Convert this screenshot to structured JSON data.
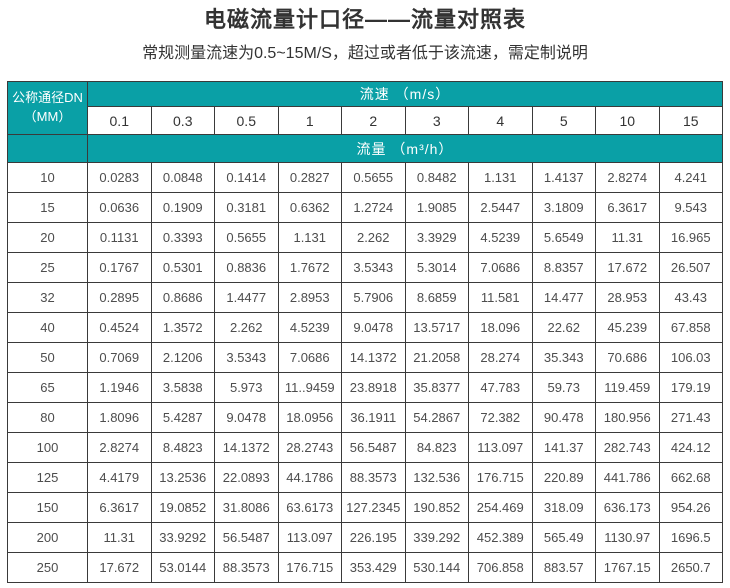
{
  "page": {
    "title": "电磁流量计口径——流量对照表",
    "subtitle": "常规测量流速为0.5~15M/S，超过或者低于该流速，需定制说明"
  },
  "colors": {
    "header_teal": "#0aa0a6",
    "header_text": "#ffffff",
    "border": "#3a3a3a",
    "cell_text": "#4d4d4d",
    "title_text": "#333333",
    "page_bg": "#ffffff"
  },
  "table": {
    "corner_header": {
      "line1": "公称通径DN",
      "line2": "（MM）"
    },
    "velocity_group_header": "流速 （m/s）",
    "flow_group_header": "流量 （m³/h）",
    "velocity_columns": [
      "0.1",
      "0.3",
      "0.5",
      "1",
      "2",
      "3",
      "4",
      "5",
      "10",
      "15"
    ],
    "rows": [
      {
        "dn": "10",
        "values": [
          "0.0283",
          "0.0848",
          "0.1414",
          "0.2827",
          "0.5655",
          "0.8482",
          "1.131",
          "1.4137",
          "2.8274",
          "4.241"
        ]
      },
      {
        "dn": "15",
        "values": [
          "0.0636",
          "0.1909",
          "0.3181",
          "0.6362",
          "1.2724",
          "1.9085",
          "2.5447",
          "3.1809",
          "6.3617",
          "9.543"
        ]
      },
      {
        "dn": "20",
        "values": [
          "0.1131",
          "0.3393",
          "0.5655",
          "1.131",
          "2.262",
          "3.3929",
          "4.5239",
          "5.6549",
          "11.31",
          "16.965"
        ]
      },
      {
        "dn": "25",
        "values": [
          "0.1767",
          "0.5301",
          "0.8836",
          "1.7672",
          "3.5343",
          "5.3014",
          "7.0686",
          "8.8357",
          "17.672",
          "26.507"
        ]
      },
      {
        "dn": "32",
        "values": [
          "0.2895",
          "0.8686",
          "1.4477",
          "2.8953",
          "5.7906",
          "8.6859",
          "11.581",
          "14.477",
          "28.953",
          "43.43"
        ]
      },
      {
        "dn": "40",
        "values": [
          "0.4524",
          "1.3572",
          "2.262",
          "4.5239",
          "9.0478",
          "13.5717",
          "18.096",
          "22.62",
          "45.239",
          "67.858"
        ]
      },
      {
        "dn": "50",
        "values": [
          "0.7069",
          "2.1206",
          "3.5343",
          "7.0686",
          "14.1372",
          "21.2058",
          "28.274",
          "35.343",
          "70.686",
          "106.03"
        ]
      },
      {
        "dn": "65",
        "values": [
          "1.1946",
          "3.5838",
          "5.973",
          "11..9459",
          "23.8918",
          "35.8377",
          "47.783",
          "59.73",
          "119.459",
          "179.19"
        ]
      },
      {
        "dn": "80",
        "values": [
          "1.8096",
          "5.4287",
          "9.0478",
          "18.0956",
          "36.1911",
          "54.2867",
          "72.382",
          "90.478",
          "180.956",
          "271.43"
        ]
      },
      {
        "dn": "100",
        "values": [
          "2.8274",
          "8.4823",
          "14.1372",
          "28.2743",
          "56.5487",
          "84.823",
          "113.097",
          "141.37",
          "282.743",
          "424.12"
        ]
      },
      {
        "dn": "125",
        "values": [
          "4.4179",
          "13.2536",
          "22.0893",
          "44.1786",
          "88.3573",
          "132.536",
          "176.715",
          "220.89",
          "441.786",
          "662.68"
        ]
      },
      {
        "dn": "150",
        "values": [
          "6.3617",
          "19.0852",
          "31.8086",
          "63.6173",
          "127.2345",
          "190.852",
          "254.469",
          "318.09",
          "636.173",
          "954.26"
        ]
      },
      {
        "dn": "200",
        "values": [
          "11.31",
          "33.9292",
          "56.5487",
          "113.097",
          "226.195",
          "339.292",
          "452.389",
          "565.49",
          "1130.97",
          "1696.5"
        ]
      },
      {
        "dn": "250",
        "values": [
          "17.672",
          "53.0144",
          "88.3573",
          "176.715",
          "353.429",
          "530.144",
          "706.858",
          "883.57",
          "1767.15",
          "2650.7"
        ]
      }
    ]
  }
}
